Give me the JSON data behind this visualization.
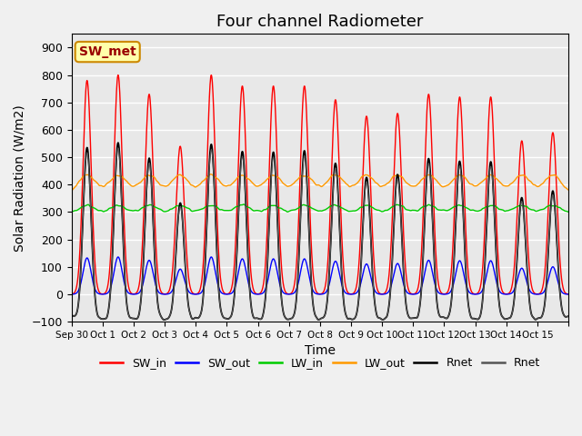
{
  "title": "Four channel Radiometer",
  "xlabel": "Time",
  "ylabel": "Solar Radiation (W/m2)",
  "ylim": [
    -100,
    950
  ],
  "yticks": [
    -100,
    0,
    100,
    200,
    300,
    400,
    500,
    600,
    700,
    800,
    900
  ],
  "xtick_positions": [
    0,
    1,
    2,
    3,
    4,
    5,
    6,
    7,
    8,
    9,
    10,
    11,
    12,
    13,
    14,
    15,
    16
  ],
  "xtick_labels": [
    "Sep 30",
    "Oct 1",
    "Oct 2",
    "Oct 3",
    "Oct 4",
    "Oct 5",
    "Oct 6",
    "Oct 7",
    "Oct 8",
    "Oct 9",
    "Oct 10",
    "Oct 11",
    "Oct 12",
    "Oct 13",
    "Oct 14",
    "Oct 15",
    ""
  ],
  "colors": {
    "SW_in": "#ff0000",
    "SW_out": "#0000ff",
    "LW_in": "#00cc00",
    "LW_out": "#ff9900",
    "Rnet_black": "#000000",
    "Rnet_dark": "#555555"
  },
  "annotation_text": "SW_met",
  "annotation_facecolor": "#ffffaa",
  "annotation_edgecolor": "#cc8800",
  "annotation_textcolor": "#990000",
  "background_color": "#e8e8e8",
  "grid_color": "#ffffff",
  "title_fontsize": 13,
  "label_fontsize": 10,
  "legend_fontsize": 9,
  "n_days": 16
}
